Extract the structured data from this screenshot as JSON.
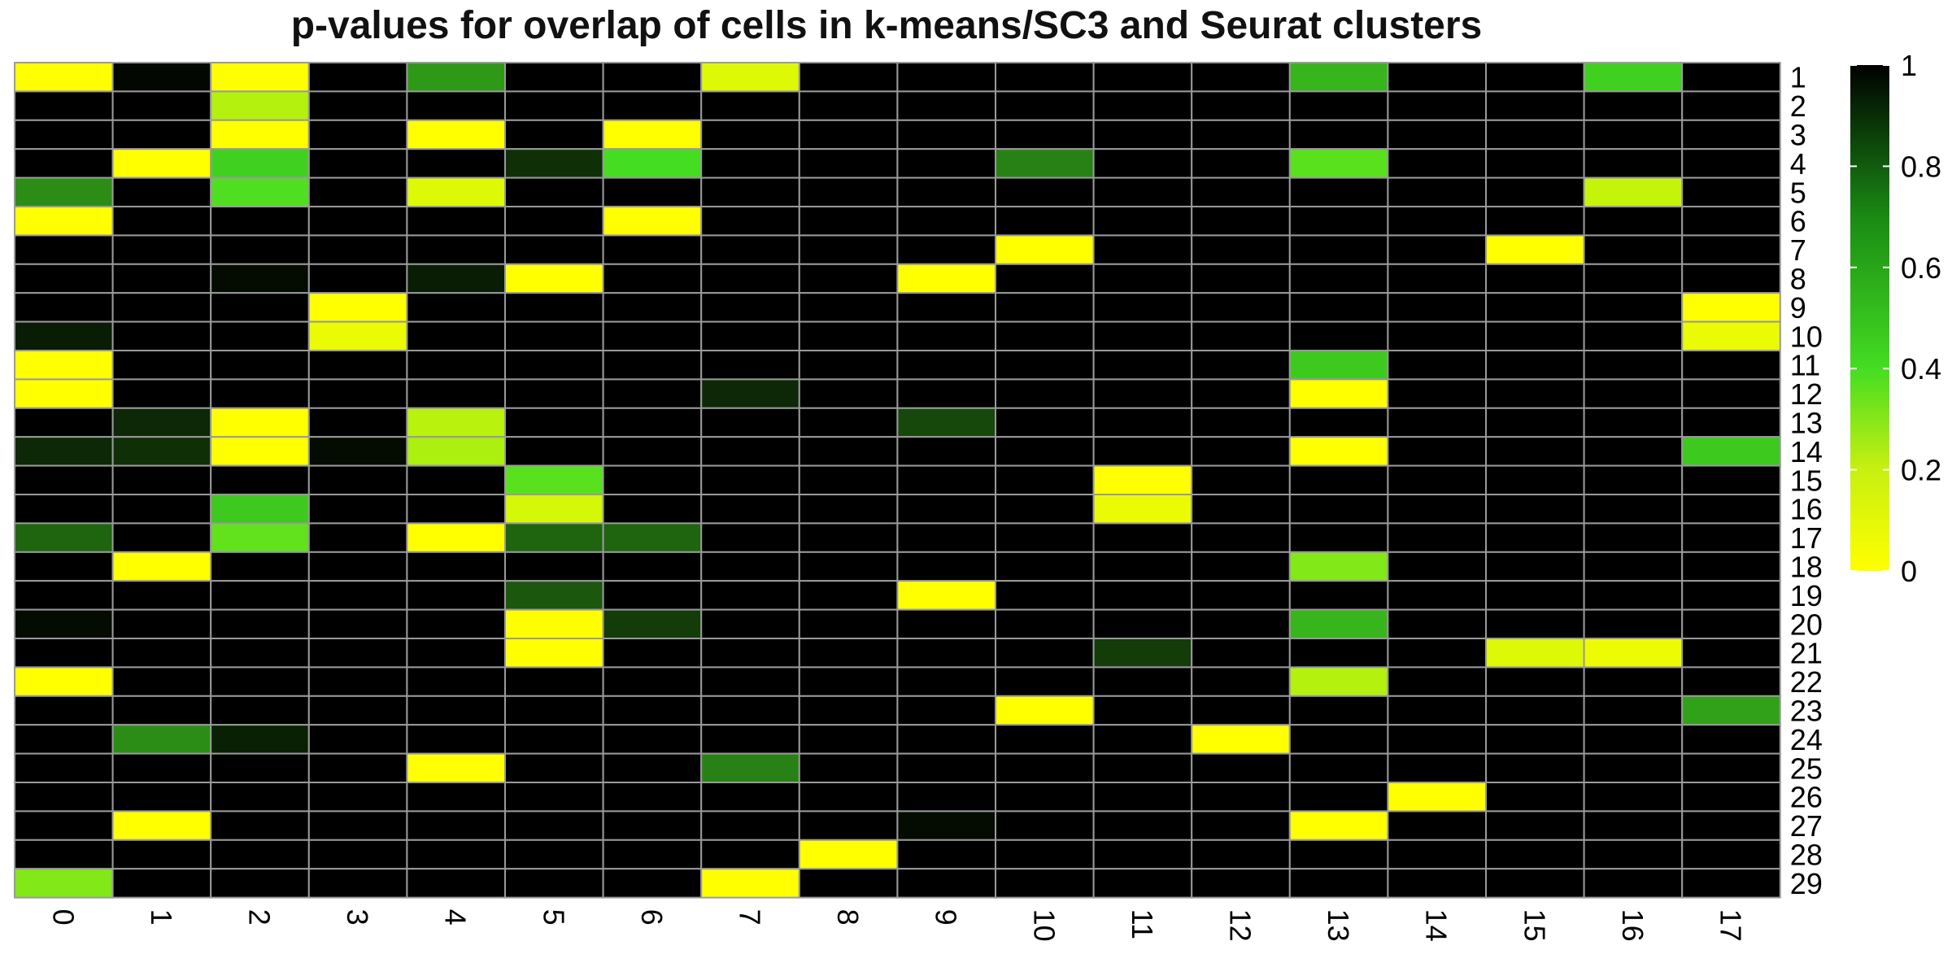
{
  "chart_data": {
    "type": "heatmap",
    "title": "p-values for overlap of cells in k-means/SC3 and Seurat clusters",
    "x_categories": [
      "0",
      "1",
      "2",
      "3",
      "4",
      "5",
      "6",
      "7",
      "8",
      "9",
      "10",
      "11",
      "12",
      "13",
      "14",
      "15",
      "16",
      "17"
    ],
    "y_categories": [
      "1",
      "2",
      "3",
      "4",
      "5",
      "6",
      "7",
      "8",
      "9",
      "10",
      "11",
      "12",
      "13",
      "14",
      "15",
      "16",
      "17",
      "18",
      "19",
      "20",
      "21",
      "22",
      "23",
      "24",
      "25",
      "26",
      "27",
      "28",
      "29"
    ],
    "values": [
      [
        0.0,
        0.98,
        0.0,
        1,
        0.62,
        1,
        1,
        0.08,
        1,
        1,
        1,
        1,
        1,
        0.55,
        1,
        1,
        0.48,
        1
      ],
      [
        1,
        1,
        0.18,
        1,
        1,
        1,
        1,
        1,
        1,
        1,
        1,
        1,
        1,
        1,
        1,
        1,
        1,
        1
      ],
      [
        1,
        1,
        0.0,
        1,
        0.0,
        1,
        0.0,
        1,
        1,
        1,
        1,
        1,
        1,
        1,
        1,
        1,
        1,
        1
      ],
      [
        1,
        0.0,
        0.48,
        1,
        1,
        0.88,
        0.45,
        1,
        1,
        1,
        0.68,
        1,
        1,
        0.4,
        1,
        1,
        1,
        1
      ],
      [
        0.65,
        1,
        0.42,
        1,
        0.08,
        1,
        1,
        1,
        1,
        1,
        1,
        1,
        1,
        1,
        1,
        1,
        0.14,
        1
      ],
      [
        0.0,
        1,
        1,
        1,
        1,
        1,
        0.0,
        1,
        1,
        1,
        1,
        1,
        1,
        1,
        1,
        1,
        1,
        1
      ],
      [
        1,
        1,
        1,
        1,
        1,
        1,
        1,
        1,
        1,
        1,
        0.0,
        1,
        1,
        1,
        1,
        0.0,
        1,
        1
      ],
      [
        1,
        1,
        0.97,
        1,
        0.93,
        0.0,
        1,
        1,
        1,
        0.0,
        1,
        1,
        1,
        1,
        1,
        1,
        1,
        1
      ],
      [
        1,
        1,
        1,
        0.0,
        1,
        1,
        1,
        1,
        1,
        1,
        1,
        1,
        1,
        1,
        1,
        1,
        1,
        0.0
      ],
      [
        0.93,
        1,
        1,
        0.05,
        1,
        1,
        1,
        1,
        1,
        1,
        1,
        1,
        1,
        1,
        1,
        1,
        1,
        0.05
      ],
      [
        0.0,
        1,
        1,
        1,
        1,
        1,
        1,
        1,
        1,
        1,
        1,
        1,
        1,
        0.5,
        1,
        1,
        1,
        1
      ],
      [
        0.0,
        1,
        1,
        1,
        1,
        1,
        1,
        0.9,
        1,
        1,
        1,
        1,
        1,
        0.0,
        1,
        1,
        1,
        1
      ],
      [
        1,
        0.9,
        0.0,
        1,
        0.17,
        1,
        1,
        1,
        1,
        0.82,
        1,
        1,
        1,
        1,
        1,
        1,
        1,
        1
      ],
      [
        0.9,
        0.88,
        0.0,
        0.97,
        0.2,
        1,
        1,
        1,
        1,
        1,
        1,
        1,
        1,
        0.0,
        1,
        1,
        1,
        0.5
      ],
      [
        1,
        1,
        1,
        1,
        1,
        0.4,
        1,
        1,
        1,
        1,
        1,
        0.0,
        1,
        1,
        1,
        1,
        1,
        1
      ],
      [
        1,
        1,
        0.5,
        1,
        1,
        0.1,
        1,
        1,
        1,
        1,
        1,
        0.05,
        1,
        1,
        1,
        1,
        1,
        1
      ],
      [
        0.75,
        1,
        0.38,
        1,
        0.0,
        0.75,
        0.75,
        1,
        1,
        1,
        1,
        1,
        1,
        1,
        1,
        1,
        1,
        1
      ],
      [
        1,
        0.0,
        1,
        1,
        1,
        1,
        1,
        1,
        1,
        1,
        1,
        1,
        1,
        0.3,
        1,
        1,
        1,
        1
      ],
      [
        1,
        1,
        1,
        1,
        1,
        0.78,
        1,
        1,
        1,
        0.0,
        1,
        1,
        1,
        1,
        1,
        1,
        1,
        1
      ],
      [
        0.97,
        1,
        1,
        1,
        1,
        0.0,
        0.85,
        1,
        1,
        1,
        1,
        1,
        1,
        0.55,
        1,
        1,
        1,
        1
      ],
      [
        1,
        1,
        1,
        1,
        1,
        0.0,
        1,
        1,
        1,
        1,
        1,
        0.85,
        1,
        1,
        1,
        0.08,
        0.04,
        1
      ],
      [
        0.0,
        1,
        1,
        1,
        1,
        1,
        1,
        1,
        1,
        1,
        1,
        1,
        1,
        0.18,
        1,
        1,
        1,
        1
      ],
      [
        1,
        1,
        1,
        1,
        1,
        1,
        1,
        1,
        1,
        1,
        0.0,
        1,
        1,
        1,
        1,
        1,
        1,
        0.6
      ],
      [
        1,
        0.65,
        0.92,
        1,
        1,
        1,
        1,
        1,
        1,
        1,
        1,
        1,
        0.0,
        1,
        1,
        1,
        1,
        1
      ],
      [
        1,
        1,
        1,
        1,
        0.0,
        1,
        1,
        0.68,
        1,
        1,
        1,
        1,
        1,
        1,
        1,
        1,
        1,
        1
      ],
      [
        1,
        1,
        1,
        1,
        1,
        1,
        1,
        1,
        1,
        1,
        1,
        1,
        1,
        1,
        0.0,
        1,
        1,
        1
      ],
      [
        1,
        0.0,
        1,
        1,
        1,
        1,
        1,
        1,
        1,
        0.97,
        1,
        1,
        1,
        0.0,
        1,
        1,
        1,
        1
      ],
      [
        1,
        1,
        1,
        1,
        1,
        1,
        1,
        1,
        0.0,
        1,
        1,
        1,
        1,
        1,
        1,
        1,
        1,
        1
      ],
      [
        0.3,
        1,
        1,
        1,
        1,
        1,
        1,
        0.0,
        1,
        1,
        1,
        1,
        1,
        1,
        1,
        1,
        1,
        1
      ]
    ],
    "color_scale": {
      "low": "#ffff00",
      "mid": "#44dd22",
      "high": "#000000",
      "range": [
        0,
        1
      ]
    },
    "legend": {
      "ticks": [
        "0",
        "0.2",
        "0.4",
        "0.6",
        "0.8",
        "1"
      ],
      "placement": "right"
    },
    "cell_border_color": "#9a9a9a"
  }
}
